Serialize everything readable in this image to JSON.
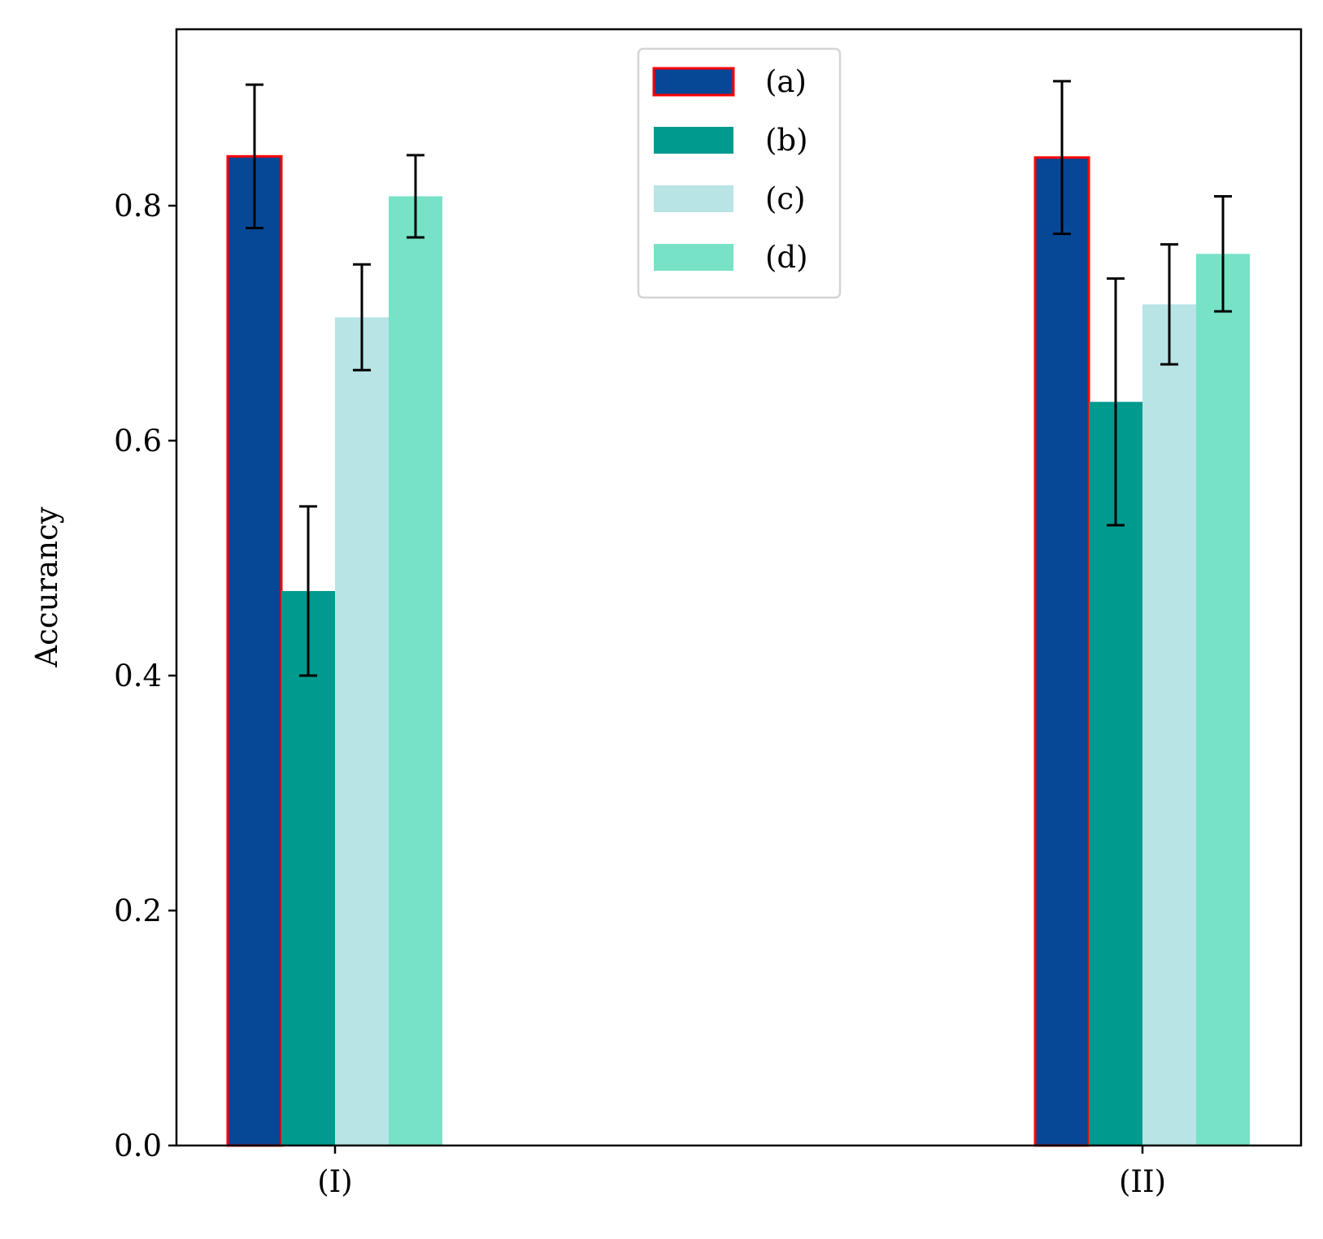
{
  "chart_data": {
    "type": "bar",
    "title": "",
    "xlabel": "",
    "ylabel": "Accurancy",
    "ylim": [
      0,
      0.95
    ],
    "yticks": [
      "0.0",
      "0.2",
      "0.4",
      "0.6",
      "0.8"
    ],
    "categories": [
      "(I)",
      "(II)"
    ],
    "series": [
      {
        "name": "(a)",
        "color": "#064896",
        "edge_color": "#ff0000",
        "values": [
          0.842,
          0.841
        ],
        "errors": [
          0.061,
          0.065
        ]
      },
      {
        "name": "(b)",
        "color": "#009a8e",
        "edge_color": "",
        "values": [
          0.472,
          0.633
        ],
        "errors": [
          0.072,
          0.105
        ]
      },
      {
        "name": "(c)",
        "color": "#b8e4e6",
        "edge_color": "",
        "values": [
          0.705,
          0.716
        ],
        "errors": [
          0.045,
          0.051
        ]
      },
      {
        "name": "(d)",
        "color": "#77e2c6",
        "edge_color": "",
        "values": [
          0.808,
          0.759
        ],
        "errors": [
          0.035,
          0.049
        ]
      }
    ],
    "legend_position": "upper center",
    "grid": false
  }
}
